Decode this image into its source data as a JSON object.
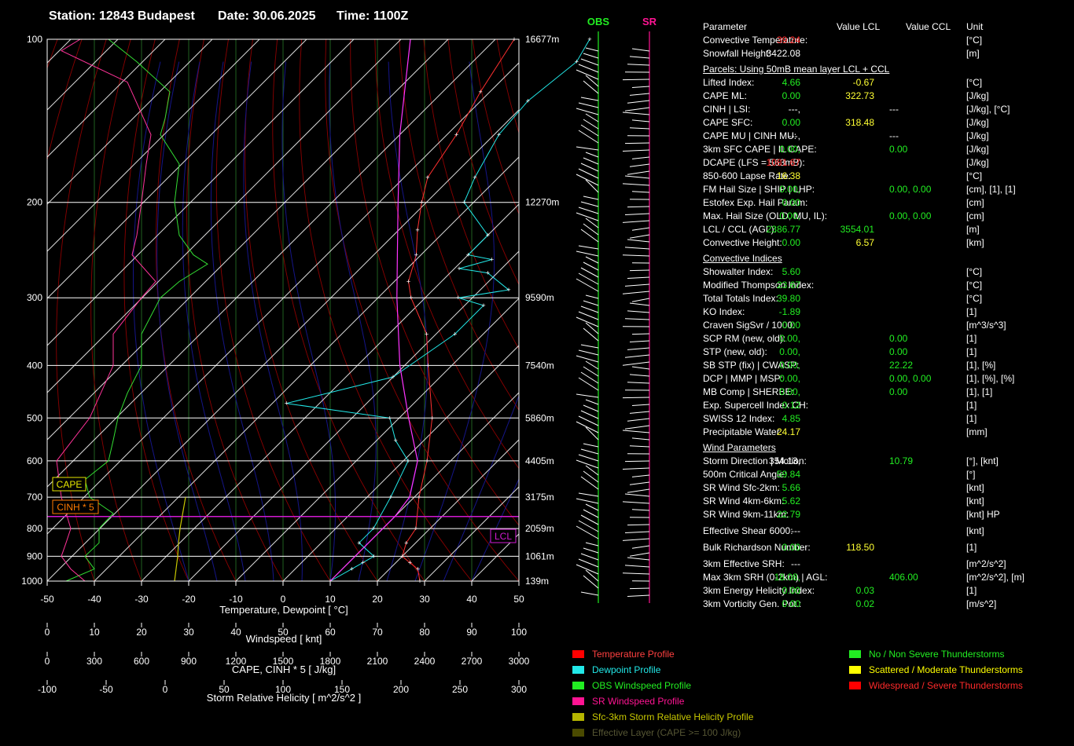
{
  "header": {
    "station": "Station: 12843 Budapest",
    "date": "Date: 30.06.2025",
    "time": "Time: 1100Z"
  },
  "chart_data": {
    "type": "skew-t log-p sounding",
    "pressure_ticks": [
      "100",
      "200",
      "300",
      "400",
      "500",
      "600",
      "700",
      "800",
      "900",
      "1000"
    ],
    "height_ticks": [
      "16677m",
      "12270m",
      "9590m",
      "7540m",
      "5860m",
      "4405m",
      "3175m",
      "2059m",
      "1061m",
      "139m"
    ],
    "temperature_ticks": [
      "-50",
      "-40",
      "-30",
      "-20",
      "-10",
      "0",
      "10",
      "20",
      "30",
      "40",
      "50"
    ],
    "xlabel": "Temperature, Dewpoint  [ °C]",
    "windspeed_ticks": [
      "0",
      "10",
      "20",
      "30",
      "40",
      "50",
      "60",
      "70",
      "80",
      "90",
      "100"
    ],
    "windspeed_label": "Windspeed  [ knt]",
    "cape_ticks": [
      "0",
      "300",
      "600",
      "900",
      "1200",
      "1500",
      "1800",
      "2100",
      "2400",
      "2700",
      "3000"
    ],
    "cape_label": "CAPE, CINH * 5  [ J/kg]",
    "srh_ticks": [
      "-100",
      "-50",
      "0",
      "50",
      "100",
      "150",
      "200",
      "250",
      "300"
    ],
    "srh_label": "Storm Relative Helicity  [ m^2/s^2 ]",
    "box_cape": "CAPE",
    "box_cinh": "CINH * 5",
    "box_lcl": "LCL",
    "obs_label": "OBS",
    "sr_label": "SR",
    "temperature_profile": [
      [
        1000,
        29
      ],
      [
        950,
        26
      ],
      [
        925,
        23
      ],
      [
        900,
        20
      ],
      [
        850,
        18
      ],
      [
        800,
        17
      ],
      [
        700,
        11
      ],
      [
        600,
        5
      ],
      [
        500,
        -3
      ],
      [
        400,
        -15
      ],
      [
        350,
        -22
      ],
      [
        300,
        -33
      ],
      [
        280,
        -37
      ],
      [
        250,
        -41
      ],
      [
        225,
        -46
      ],
      [
        200,
        -51
      ],
      [
        180,
        -55
      ],
      [
        150,
        -58
      ],
      [
        125,
        -62
      ],
      [
        100,
        -66
      ]
    ],
    "dewpoint_profile": [
      [
        1000,
        10
      ],
      [
        950,
        12
      ],
      [
        925,
        13
      ],
      [
        900,
        14
      ],
      [
        850,
        8
      ],
      [
        800,
        8
      ],
      [
        700,
        5
      ],
      [
        600,
        1
      ],
      [
        550,
        -6
      ],
      [
        500,
        -12
      ],
      [
        470,
        -37
      ],
      [
        420,
        -20
      ],
      [
        350,
        -16
      ],
      [
        310,
        -16
      ],
      [
        300,
        -23
      ],
      [
        290,
        -14
      ],
      [
        270,
        -22
      ],
      [
        265,
        -29
      ],
      [
        255,
        -24
      ],
      [
        250,
        -30
      ],
      [
        230,
        -30
      ],
      [
        200,
        -42
      ],
      [
        180,
        -45
      ],
      [
        150,
        -49
      ],
      [
        130,
        -50
      ],
      [
        110,
        -48
      ],
      [
        100,
        -50
      ]
    ],
    "parcel_profile": [
      [
        1000,
        10
      ],
      [
        900,
        10
      ],
      [
        850,
        10
      ],
      [
        800,
        10
      ],
      [
        760,
        10
      ],
      [
        700,
        9
      ],
      [
        600,
        3
      ],
      [
        500,
        -8
      ],
      [
        400,
        -21
      ],
      [
        300,
        -36
      ],
      [
        250,
        -45
      ],
      [
        200,
        -56
      ],
      [
        150,
        -70
      ],
      [
        100,
        -88
      ]
    ]
  },
  "params": {
    "header": {
      "label": "Parameter",
      "lcl": "Value LCL",
      "ccl": "Value CCL",
      "unit": "Unit"
    },
    "block1": [
      {
        "label": "Convective Temperature:",
        "v1": "39.24",
        "c1": "r",
        "unit": "[°C]"
      },
      {
        "label": "Snowfall Height:",
        "v1": "3422.08",
        "c1": "w",
        "unit": "[m]"
      }
    ],
    "parcels_title": "Parcels: Using 50mB mean layer LCL + CCL",
    "parcels": [
      {
        "label": "Lifted Index:",
        "v1": "4.66",
        "c1": "g",
        "v3": "-0.67",
        "c3": "y",
        "unit": "[°C]"
      },
      {
        "label": "CAPE ML:",
        "v1": "0.00",
        "c1": "g",
        "v3": "322.73",
        "c3": "y",
        "unit": "[J/kg]"
      },
      {
        "label": "CINH | LSI:",
        "v1": "---,",
        "c1": "w",
        "v2": "---",
        "c2": "w",
        "unit": "[J/kg], [°C]"
      },
      {
        "label": "CAPE SFC:",
        "v1": "0.00",
        "c1": "g",
        "v3": "318.48",
        "c3": "y",
        "unit": "[J/kg]"
      },
      {
        "label": "CAPE MU | CINH MU:",
        "v1": "---,",
        "c1": "w",
        "v2": "---",
        "c2": "w",
        "unit": "[J/kg]"
      },
      {
        "label": "3km SFC CAPE | IL CAPE:",
        "v1": "0.00,",
        "c1": "g",
        "v2": "0.00",
        "c2": "g",
        "unit": "[J/kg]"
      },
      {
        "label": "DCAPE (LFS = 563mB):",
        "v1": "1081.67",
        "c1": "r",
        "unit": "[J/kg]"
      },
      {
        "label": "850-600 Lapse Rate:",
        "v1": "16.38",
        "c1": "y",
        "unit": "[°C]"
      },
      {
        "label": "FM Hail Size | SHIP | LHP:",
        "v1": "0.00,",
        "c1": "g",
        "v2": "0.00,  0.00",
        "c2": "g",
        "unit": "[cm], [1], [1]"
      },
      {
        "label": "Estofex Exp. Hail Param:",
        "v1": "0.00",
        "c1": "g",
        "unit": "[cm]"
      },
      {
        "label": "Max. Hail Size (OLD, MU, IL):",
        "v1": "0.00,",
        "c1": "g",
        "v2": "0.00,  0.00",
        "c2": "g",
        "unit": "[cm]"
      },
      {
        "label": "LCL / CCL (AGL):",
        "v1": "2386.77",
        "c1": "g",
        "v3": "3554.01",
        "c3": "g",
        "unit": "[m]"
      },
      {
        "label": "Convective Height:",
        "v1": "0.00",
        "c1": "g",
        "v3": "6.57",
        "c3": "y",
        "unit": "[km]"
      }
    ],
    "convective_title": "Convective Indices",
    "convective": [
      {
        "label": "Showalter Index:",
        "v1": "5.60",
        "c1": "g",
        "unit": "[°C]"
      },
      {
        "label": "Modified Thompson Index:",
        "v1": "23.67",
        "c1": "g",
        "unit": "[°C]"
      },
      {
        "label": "Total Totals Index:",
        "v1": "39.80",
        "c1": "g",
        "unit": "[°C]"
      },
      {
        "label": "KO Index:",
        "v1": "-1.89",
        "c1": "g",
        "unit": "[1]"
      },
      {
        "label": "Craven SigSvr / 1000:",
        "v1": "0.00",
        "c1": "g",
        "unit": "[m^3/s^3]"
      },
      {
        "label": "SCP RM (new, old):",
        "v1": "0.00,",
        "c1": "g",
        "v2": "0.00",
        "c2": "g",
        "unit": "[1]"
      },
      {
        "label": "STP (new, old):",
        "v1": "0.00,",
        "c1": "g",
        "v2": "0.00",
        "c2": "g",
        "unit": "[1]"
      },
      {
        "label": "SB STP (fix) | CWASP:",
        "v1": "0.00,",
        "c1": "g",
        "v2": "22.22",
        "c2": "g",
        "unit": "[1], [%]"
      },
      {
        "label": "DCP | MMP | MSP:",
        "v1": "0.00,",
        "c1": "g",
        "v2": "0.00,  0.00",
        "c2": "g",
        "unit": "[1], [%], [%]"
      },
      {
        "label": "MB Comp | SHERBE:",
        "v1": "0.00,",
        "c1": "g",
        "v2": "0.00",
        "c2": "g",
        "unit": "[1], [1]"
      },
      {
        "label": "Exp. Supercell Index CH:",
        "v1": "0.12",
        "c1": "g",
        "unit": "[1]"
      },
      {
        "label": "SWISS 12 Index:",
        "v1": "4.85",
        "c1": "g",
        "unit": "[1]"
      },
      {
        "label": "Precipitable Water:",
        "v1": "24.17",
        "c1": "y",
        "unit": "[mm]"
      }
    ],
    "wind_title": "Wind Parameters",
    "wind": [
      {
        "label": "Storm Direction | Motion:",
        "v1": "354.13,",
        "c1": "w",
        "v2": "10.79",
        "c2": "g",
        "unit": "[°], [knt]"
      },
      {
        "label": "500m Critical Angle:",
        "v1": "59.84",
        "c1": "g",
        "unit": "[°]"
      },
      {
        "label": "SR Wind Sfc-2km:",
        "v1": "5.66",
        "c1": "g",
        "unit": "[knt]"
      },
      {
        "label": "SR Wind 4km-6km:",
        "v1": "5.62",
        "c1": "g",
        "unit": "[knt]"
      },
      {
        "label": "SR Wind 9km-11km:",
        "v1": "22.79",
        "c1": "g",
        "unit": "[knt] HP"
      },
      {
        "label": "Effective Shear 6000:",
        "v1": "---",
        "c1": "w",
        "unit": "[knt]",
        "gapBefore": true
      },
      {
        "label": "Bulk Richardson Number:",
        "v1": "0.00",
        "c1": "g",
        "v3": "118.50",
        "c3": "y",
        "unit": "[1]",
        "gapBefore": true
      },
      {
        "label": "3km Effective SRH:",
        "v1": "---",
        "c1": "w",
        "unit": "[m^2/s^2]",
        "gapBefore": true
      },
      {
        "label": "Max 3km SRH (0-2km) | AGL:",
        "v1": "18.08,",
        "c1": "g",
        "v2": "406.00",
        "c2": "g",
        "unit": "[m^2/s^2], [m]"
      },
      {
        "label": "3km Energy Helicity Index:",
        "v1": "0.00",
        "c1": "g",
        "v3": "0.03",
        "c3": "g",
        "unit": "[1]"
      },
      {
        "label": "3km Vorticity Gen. Pot.:",
        "v1": "0.00",
        "c1": "g",
        "v3": "0.02",
        "c3": "g",
        "unit": "[m/s^2]"
      }
    ]
  },
  "legend_left": [
    {
      "label": "Temperature Profile",
      "color": "#ff0000",
      "text": "#ff4040"
    },
    {
      "label": "Dewpoint Profile",
      "color": "#22e8e8",
      "text": "#22e8e8"
    },
    {
      "label": "OBS Windspeed Profile",
      "color": "#22ee22",
      "text": "#22ee22"
    },
    {
      "label": "SR Windspeed Profile",
      "color": "#ff1493",
      "text": "#ff1493"
    },
    {
      "label": "Sfc-3km Storm Relative Helicity Profile",
      "color": "#b5b500",
      "text": "#c8c800"
    },
    {
      "label": "Effective Layer (CAPE >= 100 J/kg)",
      "color": "#4a4a00",
      "text": "#555533"
    }
  ],
  "legend_right": [
    {
      "label": "No / Non Severe Thunderstorms",
      "color": "#22ee22",
      "text": "#22ee22"
    },
    {
      "label": "Scattered / Moderate Thunderstorms",
      "color": "#ffff00",
      "text": "#ffff00"
    },
    {
      "label": "Widespread / Severe Thunderstorms",
      "color": "#ff0000",
      "text": "#ff2a2a"
    }
  ]
}
